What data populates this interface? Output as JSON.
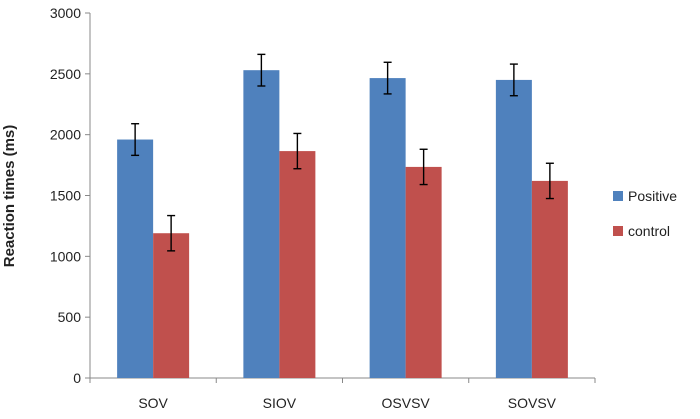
{
  "chart_data": {
    "type": "bar",
    "title": "",
    "xlabel": "",
    "ylabel": "Reaction times (ms)",
    "ylim": [
      0,
      3000
    ],
    "yticks": [
      0,
      500,
      1000,
      1500,
      2000,
      2500,
      3000
    ],
    "categories": [
      "SOV",
      "SIOV",
      "OSVSV",
      "SOVSV"
    ],
    "series": [
      {
        "name": "Positive",
        "color": "#4F81BD",
        "values": [
          1960,
          2530,
          2465,
          2450
        ],
        "errors": [
          130,
          130,
          130,
          130
        ]
      },
      {
        "name": "control",
        "color": "#C0504D",
        "values": [
          1190,
          1865,
          1735,
          1620
        ],
        "errors": [
          145,
          145,
          145,
          145
        ]
      }
    ],
    "legend_position": "right",
    "grid": false
  }
}
